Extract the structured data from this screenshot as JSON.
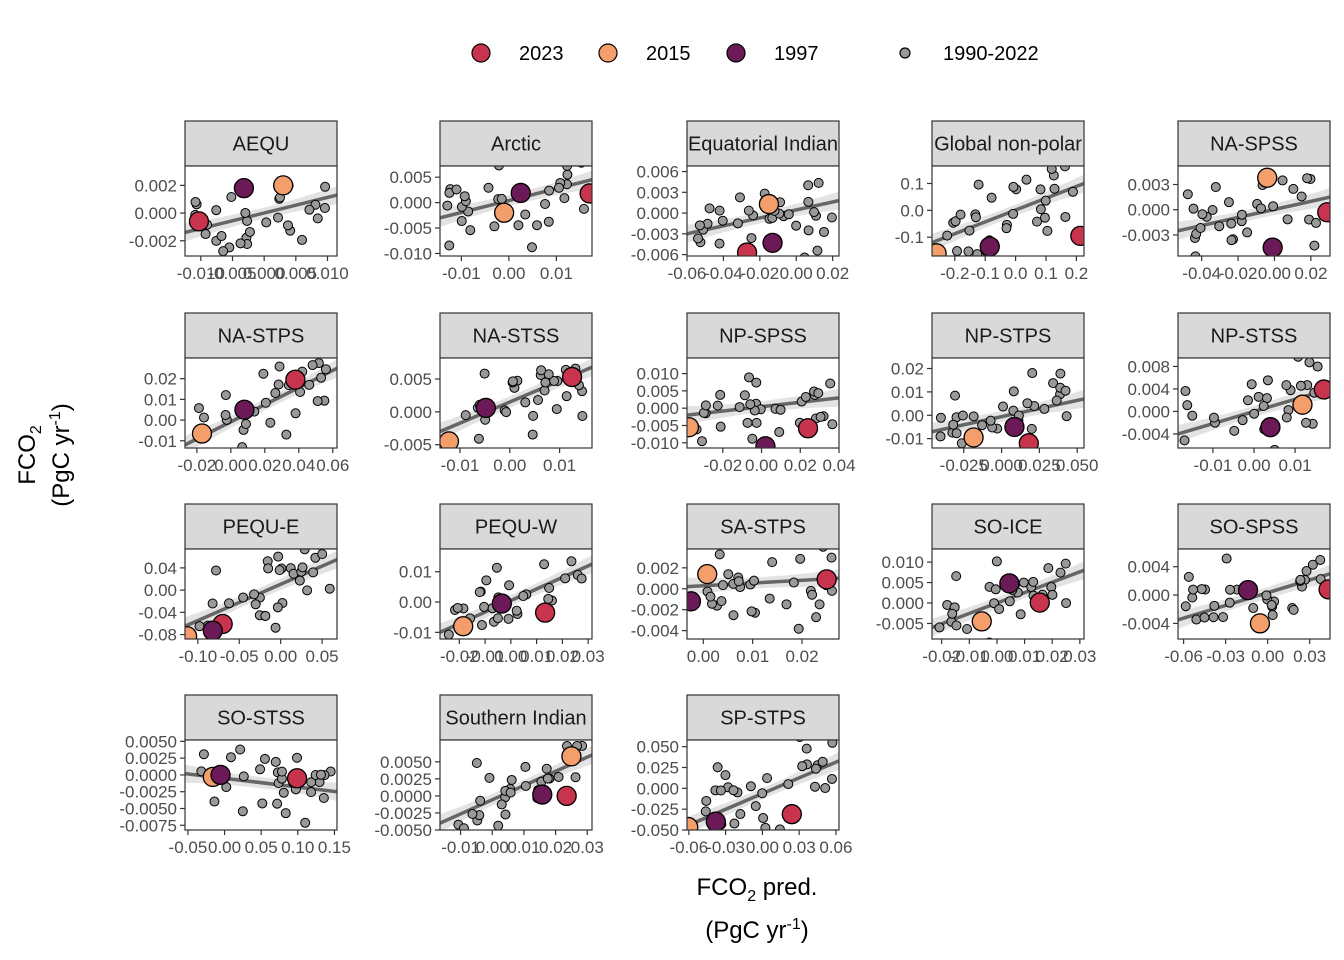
{
  "colors": {
    "2023": "#c8334e",
    "2015": "#f39e6b",
    "1997": "#6b1957",
    "background_points": "#999999",
    "fit_line": "#666666",
    "ribbon": "#d9d9d9",
    "strip_fill": "#d9d9d9"
  },
  "legend": [
    {
      "label": "2023",
      "color": "#c8334e",
      "size": "large"
    },
    {
      "label": "2015",
      "color": "#f39e6b",
      "size": "large"
    },
    {
      "label": "1997",
      "color": "#6b1957",
      "size": "large"
    },
    {
      "label": "1990-2022",
      "color": "#999999",
      "size": "small"
    }
  ],
  "axis_titles": {
    "y_line1": "FCO",
    "y_sub": "2",
    "y_line2_pre": "(PgC yr",
    "y_sup": "-1",
    "y_line2_post": ")",
    "x_line1_pre": "FCO",
    "x_sub": "2",
    "x_line1_post": " pred.",
    "x_line2_pre": "(PgC yr",
    "x_sup": "-1",
    "x_line2_post": ")"
  },
  "chart_data": [
    {
      "type": "scatter",
      "title": "AEQU",
      "xlim": [
        -0.0125,
        0.0115
      ],
      "ylim": [
        -0.0031,
        0.0034
      ],
      "xticks": [
        "-0.010",
        "-0.005",
        "0.000",
        "0.005",
        "0.010"
      ],
      "xtick_values": [
        -0.01,
        -0.005,
        0.0,
        0.005,
        0.01
      ],
      "yticks": [
        "0.002",
        "0.000",
        "-0.002"
      ],
      "ytick_values": [
        0.002,
        0.0,
        -0.002
      ],
      "fit": {
        "x0": -0.0125,
        "y0": -0.0014,
        "x1": 0.0115,
        "y1": 0.0013
      },
      "highlights": [
        {
          "year": "2023",
          "x": -0.0103,
          "y": -0.0006
        },
        {
          "year": "2015",
          "x": 0.003,
          "y": 0.002
        },
        {
          "year": "1997",
          "x": -0.0032,
          "y": 0.0018
        }
      ]
    },
    {
      "type": "scatter",
      "title": "Arctic",
      "xlim": [
        -0.0145,
        0.0175
      ],
      "ylim": [
        -0.0105,
        0.0072
      ],
      "xticks": [
        "-0.01",
        "0.00",
        "0.01"
      ],
      "xtick_values": [
        -0.01,
        0.0,
        0.01
      ],
      "yticks": [
        "0.005",
        "0.000",
        "-0.005",
        "-0.010"
      ],
      "ytick_values": [
        0.005,
        0.0,
        -0.005,
        -0.01
      ],
      "fit": {
        "x0": -0.0145,
        "y0": -0.003,
        "x1": 0.0175,
        "y1": 0.0045
      },
      "highlights": [
        {
          "year": "2023",
          "x": 0.017,
          "y": 0.0018
        },
        {
          "year": "2015",
          "x": -0.001,
          "y": -0.002
        },
        {
          "year": "1997",
          "x": 0.0025,
          "y": 0.0019
        }
      ]
    },
    {
      "type": "scatter",
      "title": "Equatorial Indian",
      "xlim": [
        -0.06,
        0.0235
      ],
      "ylim": [
        -0.0062,
        0.0068
      ],
      "xticks": [
        "-0.06",
        "-0.04",
        "-0.02",
        "0.00",
        "0.02"
      ],
      "xtick_values": [
        -0.06,
        -0.04,
        -0.02,
        0.0,
        0.02
      ],
      "yticks": [
        "0.006",
        "0.003",
        "0.000",
        "-0.003",
        "-0.006"
      ],
      "ytick_values": [
        0.006,
        0.003,
        0.0,
        -0.003,
        -0.006
      ],
      "fit": {
        "x0": -0.06,
        "y0": -0.003,
        "x1": 0.0235,
        "y1": 0.0018
      },
      "highlights": [
        {
          "year": "2023",
          "x": -0.027,
          "y": -0.0057
        },
        {
          "year": "2015",
          "x": -0.015,
          "y": 0.0013
        },
        {
          "year": "1997",
          "x": -0.013,
          "y": -0.0043
        }
      ]
    },
    {
      "type": "scatter",
      "title": "Global non-polar",
      "xlim": [
        -0.275,
        0.225
      ],
      "ylim": [
        -0.17,
        0.165
      ],
      "xticks": [
        "-0.2",
        "-0.1",
        "0.0",
        "0.1",
        "0.2"
      ],
      "xtick_values": [
        -0.2,
        -0.1,
        0.0,
        0.1,
        0.2
      ],
      "yticks": [
        "0.1",
        "0.0",
        "-0.1"
      ],
      "ytick_values": [
        0.1,
        0.0,
        -0.1
      ],
      "fit": {
        "x0": -0.275,
        "y0": -0.12,
        "x1": 0.225,
        "y1": 0.1
      },
      "highlights": [
        {
          "year": "2023",
          "x": 0.213,
          "y": -0.095
        },
        {
          "year": "2015",
          "x": -0.26,
          "y": -0.16
        },
        {
          "year": "1997",
          "x": -0.085,
          "y": -0.135
        }
      ]
    },
    {
      "type": "scatter",
      "title": "NA-SPSS",
      "xlim": [
        -0.053,
        0.0305
      ],
      "ylim": [
        -0.0055,
        0.0052
      ],
      "xticks": [
        "-0.04",
        "-0.02",
        "0.00",
        "0.02"
      ],
      "xtick_values": [
        -0.04,
        -0.02,
        0.0,
        0.02
      ],
      "yticks": [
        "0.003",
        "0.000",
        "-0.003"
      ],
      "ytick_values": [
        0.003,
        0.0,
        -0.003
      ],
      "fit": {
        "x0": -0.053,
        "y0": -0.0025,
        "x1": 0.0305,
        "y1": 0.0015
      },
      "highlights": [
        {
          "year": "2023",
          "x": 0.029,
          "y": -0.0003
        },
        {
          "year": "2015",
          "x": -0.004,
          "y": 0.0038
        },
        {
          "year": "1997",
          "x": -0.001,
          "y": -0.0045
        }
      ]
    },
    {
      "type": "scatter",
      "title": "NA-STPS",
      "xlim": [
        -0.027,
        0.0625
      ],
      "ylim": [
        -0.0135,
        0.03
      ],
      "xticks": [
        "-0.02",
        "0.00",
        "0.02",
        "0.04",
        "0.06"
      ],
      "xtick_values": [
        -0.02,
        0.0,
        0.02,
        0.04,
        0.06
      ],
      "yticks": [
        "0.02",
        "0.01",
        "0.00",
        "-0.01"
      ],
      "ytick_values": [
        0.02,
        0.01,
        0.0,
        -0.01
      ],
      "fit": {
        "x0": -0.027,
        "y0": -0.012,
        "x1": 0.0625,
        "y1": 0.025
      },
      "highlights": [
        {
          "year": "2023",
          "x": 0.038,
          "y": 0.0195
        },
        {
          "year": "2015",
          "x": -0.017,
          "y": -0.0065
        },
        {
          "year": "1997",
          "x": 0.008,
          "y": 0.005
        }
      ]
    },
    {
      "type": "scatter",
      "title": "NA-STSS",
      "xlim": [
        -0.014,
        0.0165
      ],
      "ylim": [
        -0.0055,
        0.0082
      ],
      "xticks": [
        "-0.01",
        "0.00",
        "0.01"
      ],
      "xtick_values": [
        -0.01,
        0.0,
        0.01
      ],
      "yticks": [
        "0.005",
        "0.000",
        "-0.005"
      ],
      "ytick_values": [
        0.005,
        0.0,
        -0.005
      ],
      "fit": {
        "x0": -0.014,
        "y0": -0.003,
        "x1": 0.0165,
        "y1": 0.0068
      },
      "highlights": [
        {
          "year": "2023",
          "x": 0.0125,
          "y": 0.0053
        },
        {
          "year": "2015",
          "x": -0.0122,
          "y": -0.0045
        },
        {
          "year": "1997",
          "x": -0.0048,
          "y": 0.0006
        }
      ]
    },
    {
      "type": "scatter",
      "title": "NP-SPSS",
      "xlim": [
        -0.0385,
        0.04
      ],
      "ylim": [
        -0.0115,
        0.0145
      ],
      "xticks": [
        "-0.02",
        "0.00",
        "0.02",
        "0.04"
      ],
      "xtick_values": [
        -0.02,
        0.0,
        0.02,
        0.04
      ],
      "yticks": [
        "0.010",
        "0.005",
        "0.000",
        "-0.005",
        "-0.010"
      ],
      "ytick_values": [
        0.01,
        0.005,
        0.0,
        -0.005,
        -0.01
      ],
      "fit": {
        "x0": -0.0385,
        "y0": -0.002,
        "x1": 0.04,
        "y1": 0.003
      },
      "highlights": [
        {
          "year": "2023",
          "x": 0.024,
          "y": -0.0058
        },
        {
          "year": "2015",
          "x": -0.0375,
          "y": -0.0055
        },
        {
          "year": "1997",
          "x": 0.002,
          "y": -0.011
        }
      ]
    },
    {
      "type": "scatter",
      "title": "NP-STPS",
      "xlim": [
        -0.046,
        0.0545
      ],
      "ylim": [
        -0.014,
        0.0245
      ],
      "xticks": [
        "-0.025",
        "0.000",
        "0.025",
        "0.050"
      ],
      "xtick_values": [
        -0.025,
        0.0,
        0.025,
        0.05
      ],
      "yticks": [
        "0.02",
        "0.01",
        "0.00",
        "-0.01"
      ],
      "ytick_values": [
        0.02,
        0.01,
        0.0,
        -0.01
      ],
      "fit": {
        "x0": -0.046,
        "y0": -0.007,
        "x1": 0.0545,
        "y1": 0.007
      },
      "highlights": [
        {
          "year": "2023",
          "x": 0.018,
          "y": -0.012
        },
        {
          "year": "2015",
          "x": -0.0185,
          "y": -0.0095
        },
        {
          "year": "1997",
          "x": 0.0085,
          "y": -0.005
        }
      ]
    },
    {
      "type": "scatter",
      "title": "NP-STSS",
      "xlim": [
        -0.0185,
        0.0185
      ],
      "ylim": [
        -0.0065,
        0.0095
      ],
      "xticks": [
        "-0.01",
        "0.00",
        "0.01"
      ],
      "xtick_values": [
        -0.01,
        0.0,
        0.01
      ],
      "yticks": [
        "0.008",
        "0.004",
        "0.000",
        "-0.004"
      ],
      "ytick_values": [
        0.008,
        0.004,
        0.0,
        -0.004
      ],
      "fit": {
        "x0": -0.0185,
        "y0": -0.004,
        "x1": 0.0185,
        "y1": 0.004
      },
      "highlights": [
        {
          "year": "2023",
          "x": 0.017,
          "y": 0.0039
        },
        {
          "year": "2015",
          "x": 0.0118,
          "y": 0.0012
        },
        {
          "year": "1997",
          "x": 0.004,
          "y": -0.0028
        }
      ]
    },
    {
      "type": "scatter",
      "title": "PEQU-E",
      "xlim": [
        -0.1155,
        0.068
      ],
      "ylim": [
        -0.088,
        0.074
      ],
      "xticks": [
        "-0.10",
        "-0.05",
        "0.00",
        "0.05"
      ],
      "xtick_values": [
        -0.1,
        -0.05,
        0.0,
        0.05
      ],
      "yticks": [
        "0.04",
        "0.00",
        "-0.04",
        "-0.08"
      ],
      "ytick_values": [
        0.04,
        0.0,
        -0.04,
        -0.08
      ],
      "fit": {
        "x0": -0.1155,
        "y0": -0.065,
        "x1": 0.068,
        "y1": 0.055
      },
      "highlights": [
        {
          "year": "2023",
          "x": -0.07,
          "y": -0.061
        },
        {
          "year": "2015",
          "x": -0.113,
          "y": -0.083
        },
        {
          "year": "1997",
          "x": -0.082,
          "y": -0.073
        }
      ]
    },
    {
      "type": "scatter",
      "title": "PEQU-W",
      "xlim": [
        -0.0275,
        0.0315
      ],
      "ylim": [
        -0.0122,
        0.0175
      ],
      "xticks": [
        "-0.02",
        "-0.01",
        "0.00",
        "0.01",
        "0.02",
        "0.03"
      ],
      "xtick_values": [
        -0.02,
        -0.01,
        0.0,
        0.01,
        0.02,
        0.03
      ],
      "yticks": [
        "0.01",
        "0.00",
        "-0.01"
      ],
      "ytick_values": [
        0.01,
        0.0,
        -0.01
      ],
      "fit": {
        "x0": -0.0275,
        "y0": -0.01,
        "x1": 0.0315,
        "y1": 0.0125
      },
      "highlights": [
        {
          "year": "2023",
          "x": 0.0133,
          "y": -0.0035
        },
        {
          "year": "2015",
          "x": -0.0185,
          "y": -0.008
        },
        {
          "year": "1997",
          "x": -0.0035,
          "y": -0.0005
        }
      ]
    },
    {
      "type": "scatter",
      "title": "SA-STPS",
      "xlim": [
        -0.0033,
        0.0275
      ],
      "ylim": [
        -0.0048,
        0.0038
      ],
      "xticks": [
        "0.00",
        "0.01",
        "0.02"
      ],
      "xtick_values": [
        0.0,
        0.01,
        0.02
      ],
      "yticks": [
        "0.002",
        "0.000",
        "-0.002",
        "-0.004"
      ],
      "ytick_values": [
        0.002,
        0.0,
        -0.002,
        -0.004
      ],
      "fit": {
        "x0": -0.0033,
        "y0": 0.0002,
        "x1": 0.0275,
        "y1": 0.001
      },
      "highlights": [
        {
          "year": "2023",
          "x": 0.025,
          "y": 0.0009
        },
        {
          "year": "2015",
          "x": 0.0008,
          "y": 0.0014
        },
        {
          "year": "1997",
          "x": -0.0025,
          "y": -0.0012
        }
      ]
    },
    {
      "type": "scatter",
      "title": "SO-ICE",
      "xlim": [
        -0.0235,
        0.0315
      ],
      "ylim": [
        -0.0088,
        0.0132
      ],
      "xticks": [
        "-0.02",
        "-0.01",
        "0.00",
        "0.01",
        "0.02",
        "0.03"
      ],
      "xtick_values": [
        -0.02,
        -0.01,
        0.0,
        0.01,
        0.02,
        0.03
      ],
      "yticks": [
        "0.010",
        "0.005",
        "0.000",
        "-0.005"
      ],
      "ytick_values": [
        0.01,
        0.005,
        0.0,
        -0.005
      ],
      "fit": {
        "x0": -0.0235,
        "y0": -0.006,
        "x1": 0.0315,
        "y1": 0.008
      },
      "highlights": [
        {
          "year": "2023",
          "x": 0.0155,
          "y": 0.0001
        },
        {
          "year": "2015",
          "x": -0.0055,
          "y": -0.0045
        },
        {
          "year": "1997",
          "x": 0.0045,
          "y": 0.0048
        }
      ]
    },
    {
      "type": "scatter",
      "title": "SO-SPSS",
      "xlim": [
        -0.064,
        0.0445
      ],
      "ylim": [
        -0.0062,
        0.0065
      ],
      "xticks": [
        "-0.06",
        "-0.03",
        "0.00",
        "0.03"
      ],
      "xtick_values": [
        -0.06,
        -0.03,
        0.0,
        0.03
      ],
      "yticks": [
        "0.004",
        "0.000",
        "-0.004"
      ],
      "ytick_values": [
        0.004,
        0.0,
        -0.004
      ],
      "fit": {
        "x0": -0.064,
        "y0": -0.0035,
        "x1": 0.0445,
        "y1": 0.003
      },
      "highlights": [
        {
          "year": "2023",
          "x": 0.0435,
          "y": 0.0008
        },
        {
          "year": "2015",
          "x": -0.0055,
          "y": -0.004
        },
        {
          "year": "1997",
          "x": -0.014,
          "y": 0.0007
        }
      ]
    },
    {
      "type": "scatter",
      "title": "SO-STSS",
      "xlim": [
        -0.054,
        0.1535
      ],
      "ylim": [
        -0.0082,
        0.0052
      ],
      "xticks": [
        "-0.05",
        "0.00",
        "0.05",
        "0.10",
        "0.15"
      ],
      "xtick_values": [
        -0.05,
        0.0,
        0.05,
        0.1,
        0.15
      ],
      "yticks": [
        "0.0050",
        "0.0025",
        "0.0000",
        "-0.0025",
        "-0.0050",
        "-0.0075"
      ],
      "ytick_values": [
        0.005,
        0.0025,
        0.0,
        -0.0025,
        -0.005,
        -0.0075
      ],
      "fit": {
        "x0": -0.054,
        "y0": 0.0002,
        "x1": 0.1535,
        "y1": -0.0025
      },
      "highlights": [
        {
          "year": "2023",
          "x": 0.099,
          "y": -0.0005
        },
        {
          "year": "2015",
          "x": -0.016,
          "y": -0.0003
        },
        {
          "year": "1997",
          "x": -0.0055,
          "y": 0.0
        }
      ]
    },
    {
      "type": "scatter",
      "title": "Southern Indian",
      "xlim": [
        -0.0165,
        0.0315
      ],
      "ylim": [
        -0.005,
        0.0082
      ],
      "xticks": [
        "-0.01",
        "0.00",
        "0.01",
        "0.02",
        "0.03"
      ],
      "xtick_values": [
        -0.01,
        0.0,
        0.01,
        0.02,
        0.03
      ],
      "yticks": [
        "0.0050",
        "0.0025",
        "0.0000",
        "-0.0025",
        "-0.0050"
      ],
      "ytick_values": [
        0.005,
        0.0025,
        0.0,
        -0.0025,
        -0.005
      ],
      "fit": {
        "x0": -0.0165,
        "y0": -0.004,
        "x1": 0.0315,
        "y1": 0.006
      },
      "highlights": [
        {
          "year": "2023",
          "x": 0.0235,
          "y": 0.0
        },
        {
          "year": "2015",
          "x": 0.025,
          "y": 0.0058
        },
        {
          "year": "1997",
          "x": 0.0158,
          "y": 0.0002
        }
      ]
    },
    {
      "type": "scatter",
      "title": "SP-STPS",
      "xlim": [
        -0.0615,
        0.0625
      ],
      "ylim": [
        -0.05,
        0.058
      ],
      "xticks": [
        "-0.06",
        "-0.03",
        "0.00",
        "0.03",
        "0.06"
      ],
      "xtick_values": [
        -0.06,
        -0.03,
        0.0,
        0.03,
        0.06
      ],
      "yticks": [
        "0.050",
        "0.025",
        "0.000",
        "-0.025",
        "-0.050"
      ],
      "ytick_values": [
        0.05,
        0.025,
        0.0,
        -0.025,
        -0.05
      ],
      "fit": {
        "x0": -0.0615,
        "y0": -0.045,
        "x1": 0.0625,
        "y1": 0.033
      },
      "highlights": [
        {
          "year": "2023",
          "x": 0.024,
          "y": -0.031
        },
        {
          "year": "2015",
          "x": -0.0605,
          "y": -0.0465
        },
        {
          "year": "1997",
          "x": -0.038,
          "y": -0.04
        }
      ]
    }
  ]
}
